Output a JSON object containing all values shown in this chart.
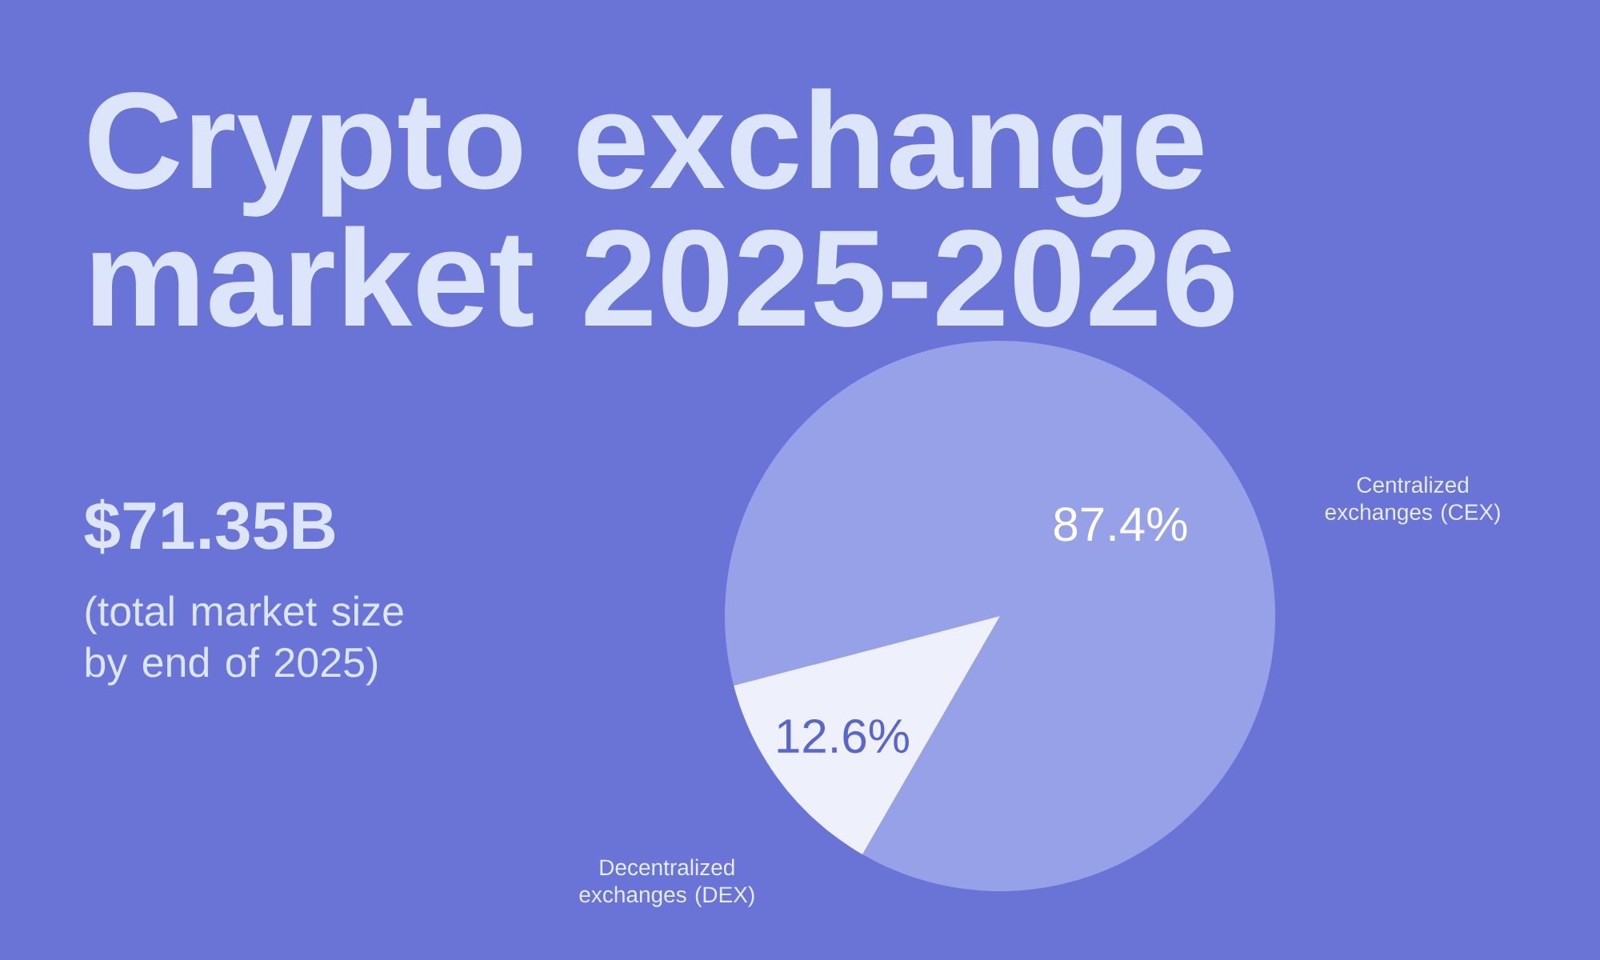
{
  "chart_data": {
    "type": "pie",
    "title": "Crypto exchange market 2025-2026",
    "categories": [
      "Centralized exchanges (CEX)",
      "Decentralized exchanges (DEX)"
    ],
    "values": [
      87.4,
      12.6
    ],
    "colors": [
      "#97a1e8",
      "#eef0fc"
    ],
    "value_labels": [
      "87.4%",
      "12.6%"
    ],
    "annotations": [
      "$71.35B",
      "(total market size by end of 2025)"
    ]
  }
}
